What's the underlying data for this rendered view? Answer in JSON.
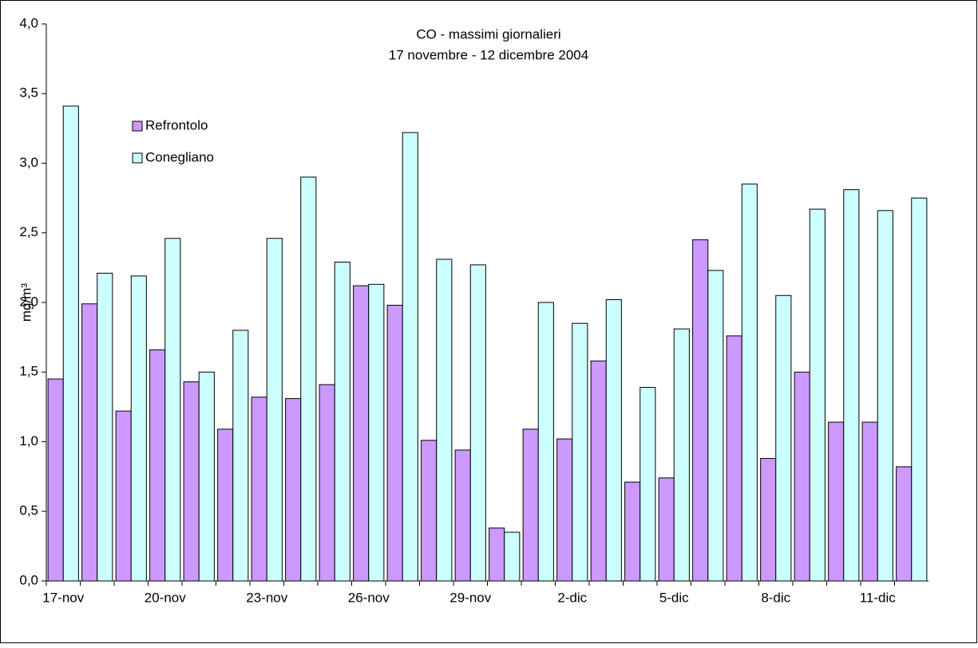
{
  "chart_data": {
    "type": "bar",
    "title": "CO - massimi giornalieri",
    "subtitle": "17 novembre - 12 dicembre 2004",
    "y_label": "mg/m³",
    "categories": [
      "17-nov",
      null,
      null,
      "20-nov",
      null,
      null,
      "23-nov",
      null,
      null,
      "26-nov",
      null,
      null,
      "29-nov",
      null,
      null,
      "2-dic",
      null,
      null,
      "5-dic",
      null,
      null,
      "8-dic",
      null,
      null,
      "11-dic",
      null
    ],
    "series": [
      {
        "name": "Refrontolo",
        "color": "#cc99ff",
        "values": [
          1.45,
          1.99,
          1.22,
          1.66,
          1.43,
          1.09,
          1.32,
          1.31,
          1.41,
          2.12,
          1.98,
          1.01,
          0.94,
          0.38,
          1.09,
          1.02,
          1.58,
          0.71,
          0.74,
          2.45,
          1.76,
          0.88,
          1.5,
          1.14,
          1.14,
          0.82
        ]
      },
      {
        "name": "Conegliano",
        "color": "#ccffff",
        "values": [
          3.41,
          2.21,
          2.19,
          2.46,
          1.5,
          1.8,
          2.46,
          2.9,
          2.29,
          2.13,
          3.22,
          2.31,
          2.27,
          0.35,
          2.0,
          1.85,
          2.02,
          1.39,
          1.81,
          2.23,
          2.85,
          2.05,
          2.67,
          2.81,
          2.66,
          2.75
        ]
      }
    ],
    "ylim": [
      0,
      4
    ],
    "yticks": [
      {
        "value": 0,
        "label": "0,0"
      },
      {
        "value": 0.5,
        "label": "0,5"
      },
      {
        "value": 1,
        "label": "1,0"
      },
      {
        "value": 1.5,
        "label": "1,5"
      },
      {
        "value": 2,
        "label": "2,0"
      },
      {
        "value": 2.5,
        "label": "2,5"
      },
      {
        "value": 3,
        "label": "3,0"
      },
      {
        "value": 3.5,
        "label": "3,5"
      },
      {
        "value": 4,
        "label": "4,0"
      }
    ],
    "grid": false,
    "legend": "top-left"
  }
}
